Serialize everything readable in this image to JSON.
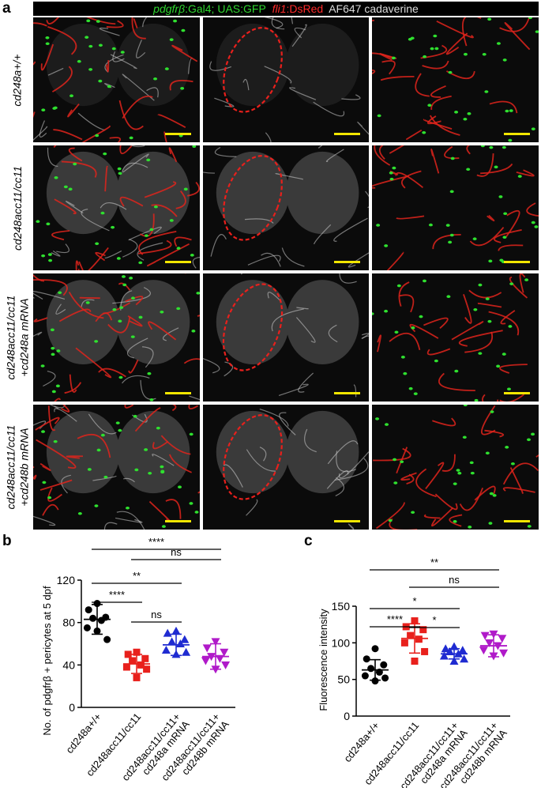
{
  "panels": {
    "a": "a",
    "b": "b",
    "c": "c"
  },
  "header": {
    "part1_gene": "pdgfrβ",
    "part1_rest": ":Gal4; UAS:GFP",
    "part2_gene": "fli1",
    "part2_rest": ":DsRed",
    "part3": "AF647 cadaverine"
  },
  "rows": [
    {
      "line1": "cd248a+/+",
      "line2": ""
    },
    {
      "line1": "cd248acc11/cc11",
      "line2": ""
    },
    {
      "line1": "cd248acc11/cc11",
      "line2": "+cd248a mRNA"
    },
    {
      "line1": "cd248acc11/cc11",
      "line2": "+cd248b mRNA"
    }
  ],
  "colors": {
    "wt": "#000000",
    "mut": "#e8201c",
    "resA": "#1f2bd1",
    "resB": "#b01ac9",
    "scale_bar": "#f2e600",
    "dash": "#e8201c"
  },
  "chart_data": [
    {
      "type": "scatter",
      "ylabel": "No. of pdgfrβ + pericytes at 5 dpf",
      "ylim": [
        0,
        120
      ],
      "yticks": [
        "0",
        "40",
        "80",
        "120"
      ],
      "categories": [
        "cd248a+/+",
        "cd248acc11/cc11",
        "cd248acc11/cc11+ cd248a mRNA",
        "cd248acc11/cc11+ cd248b mRNA"
      ],
      "series": [
        {
          "values": [
            98,
            92,
            85,
            84,
            82,
            75,
            64,
            72
          ],
          "mean": 83,
          "sd": 14
        },
        {
          "values": [
            52,
            50,
            46,
            44,
            40,
            38,
            36,
            28
          ],
          "mean": 41,
          "sd": 9
        },
        {
          "values": [
            72,
            70,
            64,
            62,
            60,
            54,
            52,
            50
          ],
          "mean": 59,
          "sd": 10
        },
        {
          "values": [
            62,
            56,
            52,
            48,
            46,
            44,
            40,
            36
          ],
          "mean": 48,
          "sd": 12
        }
      ],
      "significance": [
        {
          "from": 0,
          "to": 3,
          "label": "****"
        },
        {
          "from": 1,
          "to": 3,
          "label": "ns"
        },
        {
          "from": 0,
          "to": 2,
          "label": "**"
        },
        {
          "from": 0,
          "to": 1,
          "label": "****"
        },
        {
          "from": 1,
          "to": 2,
          "label": "ns"
        }
      ]
    },
    {
      "type": "scatter",
      "ylabel": "Fluorescence intensity",
      "ylim": [
        0,
        150
      ],
      "yticks": [
        "0",
        "50",
        "100",
        "150"
      ],
      "categories": [
        "cd248a+/+",
        "cd248acc11/cc11",
        "cd248acc11/cc11+ cd248a mRNA",
        "cd248acc11/cc11+ cd248b mRNA"
      ],
      "series": [
        {
          "values": [
            92,
            78,
            70,
            65,
            60,
            55,
            52,
            48
          ],
          "mean": 63,
          "sd": 14
        },
        {
          "values": [
            130,
            122,
            118,
            110,
            105,
            100,
            88,
            75
          ],
          "mean": 106,
          "sd": 20
        },
        {
          "values": [
            95,
            92,
            90,
            88,
            85,
            82,
            78,
            75
          ],
          "mean": 85,
          "sd": 7
        },
        {
          "values": [
            112,
            110,
            106,
            100,
            96,
            90,
            86,
            82
          ],
          "mean": 96,
          "sd": 15
        }
      ],
      "significance": [
        {
          "from": 0,
          "to": 3,
          "label": "**"
        },
        {
          "from": 1,
          "to": 3,
          "label": "ns"
        },
        {
          "from": 0,
          "to": 2,
          "label": "*"
        },
        {
          "from": 0,
          "to": 1,
          "label": "****"
        },
        {
          "from": 1,
          "to": 2,
          "label": "*"
        }
      ]
    }
  ]
}
